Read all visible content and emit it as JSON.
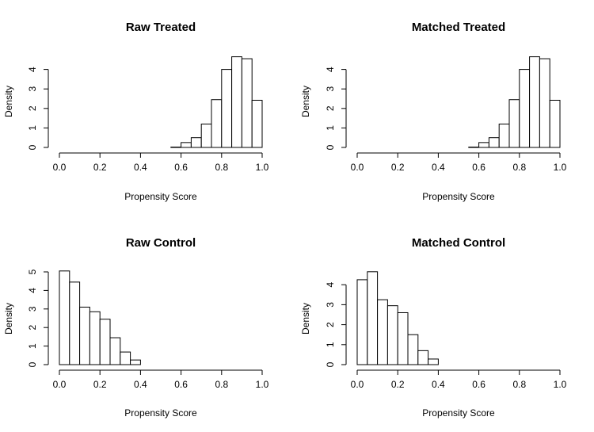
{
  "chart_data": [
    {
      "type": "bar",
      "title": "Raw Treated",
      "xlabel": "Propensity Score",
      "ylabel": "Density",
      "xlim": [
        0,
        1
      ],
      "ylim": [
        0,
        4.6
      ],
      "xticks": [
        "0.0",
        "0.2",
        "0.4",
        "0.6",
        "0.8",
        "1.0"
      ],
      "yticks": [
        "0",
        "1",
        "2",
        "3",
        "4"
      ],
      "bin_width": 0.05,
      "bins": [
        {
          "x0": 0.55,
          "value": 0.02
        },
        {
          "x0": 0.6,
          "value": 0.25
        },
        {
          "x0": 0.65,
          "value": 0.5
        },
        {
          "x0": 0.7,
          "value": 1.2
        },
        {
          "x0": 0.75,
          "value": 2.45
        },
        {
          "x0": 0.8,
          "value": 4.0
        },
        {
          "x0": 0.85,
          "value": 4.65
        },
        {
          "x0": 0.9,
          "value": 4.55
        },
        {
          "x0": 0.95,
          "value": 2.42
        }
      ]
    },
    {
      "type": "bar",
      "title": "Matched Treated",
      "xlabel": "Propensity Score",
      "ylabel": "Density",
      "xlim": [
        0,
        1
      ],
      "ylim": [
        0,
        4.6
      ],
      "xticks": [
        "0.0",
        "0.2",
        "0.4",
        "0.6",
        "0.8",
        "1.0"
      ],
      "yticks": [
        "0",
        "1",
        "2",
        "3",
        "4"
      ],
      "bin_width": 0.05,
      "bins": [
        {
          "x0": 0.55,
          "value": 0.02
        },
        {
          "x0": 0.6,
          "value": 0.25
        },
        {
          "x0": 0.65,
          "value": 0.5
        },
        {
          "x0": 0.7,
          "value": 1.2
        },
        {
          "x0": 0.75,
          "value": 2.45
        },
        {
          "x0": 0.8,
          "value": 4.0
        },
        {
          "x0": 0.85,
          "value": 4.65
        },
        {
          "x0": 0.9,
          "value": 4.55
        },
        {
          "x0": 0.95,
          "value": 2.42
        }
      ]
    },
    {
      "type": "bar",
      "title": "Raw Control",
      "xlabel": "Propensity Score",
      "ylabel": "Density",
      "xlim": [
        0,
        1
      ],
      "ylim": [
        0,
        5.1
      ],
      "xticks": [
        "0.0",
        "0.2",
        "0.4",
        "0.6",
        "0.8",
        "1.0"
      ],
      "yticks": [
        "0",
        "1",
        "2",
        "3",
        "4",
        "5"
      ],
      "bin_width": 0.05,
      "bins": [
        {
          "x0": 0.0,
          "value": 5.05
        },
        {
          "x0": 0.05,
          "value": 4.45
        },
        {
          "x0": 0.1,
          "value": 3.1
        },
        {
          "x0": 0.15,
          "value": 2.85
        },
        {
          "x0": 0.2,
          "value": 2.45
        },
        {
          "x0": 0.25,
          "value": 1.45
        },
        {
          "x0": 0.3,
          "value": 0.68
        },
        {
          "x0": 0.35,
          "value": 0.25
        }
      ]
    },
    {
      "type": "bar",
      "title": "Matched Control",
      "xlabel": "Propensity Score",
      "ylabel": "Density",
      "xlim": [
        0,
        1
      ],
      "ylim": [
        0,
        4.6
      ],
      "xticks": [
        "0.0",
        "0.2",
        "0.4",
        "0.6",
        "0.8",
        "1.0"
      ],
      "yticks": [
        "0",
        "1",
        "2",
        "3",
        "4"
      ],
      "bin_width": 0.05,
      "bins": [
        {
          "x0": 0.0,
          "value": 4.25
        },
        {
          "x0": 0.05,
          "value": 4.65
        },
        {
          "x0": 0.1,
          "value": 3.25
        },
        {
          "x0": 0.15,
          "value": 2.95
        },
        {
          "x0": 0.2,
          "value": 2.6
        },
        {
          "x0": 0.25,
          "value": 1.5
        },
        {
          "x0": 0.3,
          "value": 0.7
        },
        {
          "x0": 0.35,
          "value": 0.28
        }
      ]
    }
  ]
}
